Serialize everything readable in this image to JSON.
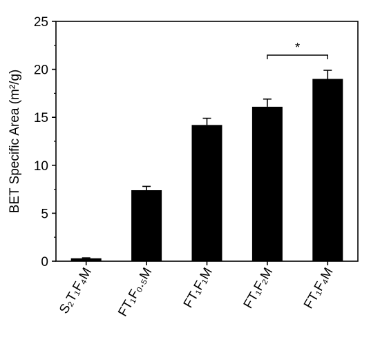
{
  "chart_data": {
    "type": "bar",
    "title": "",
    "xlabel": "",
    "ylabel": "BET Specific Area (m²/g)",
    "ylim": [
      0,
      25
    ],
    "yticks": [
      "0",
      "5",
      "10",
      "15",
      "20",
      "25"
    ],
    "grid": false,
    "categories": [
      "S₂T₁F₄M",
      "FT₁F₀.₅M",
      "FT₁F₁M",
      "FT₁F₂M",
      "FT₁F₄M"
    ],
    "values": [
      0.3,
      7.4,
      14.2,
      16.1,
      19.0
    ],
    "errors": [
      0.05,
      0.4,
      0.7,
      0.8,
      0.9
    ],
    "bar_color": "#000000",
    "significance": {
      "from": 3,
      "to": 4,
      "label": "*"
    }
  }
}
